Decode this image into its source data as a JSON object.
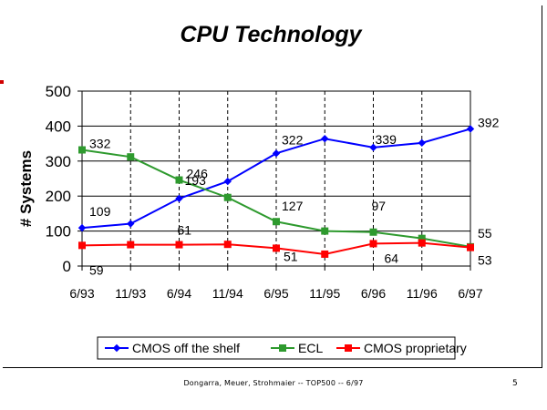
{
  "slide": {
    "footer": "Dongarra, Meuer, Strohmaier -- TOP500 -- 6/97",
    "page_number": "5"
  },
  "colors": {
    "frame": "#000000",
    "accent_mark": "#d00000"
  },
  "chart_data": {
    "type": "line",
    "title": "CPU Technology",
    "ylabel": "# Systems",
    "xlabel": "",
    "ylim": [
      0,
      500
    ],
    "yticks": [
      0,
      100,
      200,
      300,
      400,
      500
    ],
    "x": [
      "6/93",
      "11/93",
      "6/94",
      "11/94",
      "6/95",
      "11/95",
      "6/96",
      "11/96",
      "6/97"
    ],
    "grid": "vertical dashed and horizontal solid",
    "legend_position": "bottom",
    "series": [
      {
        "name": "CMOS off the shelf",
        "color": "#0000ff",
        "marker": "diamond",
        "values": [
          109,
          121,
          193,
          242,
          322,
          364,
          339,
          352,
          392
        ]
      },
      {
        "name": "ECL",
        "color": "#2e9a2e",
        "marker": "square",
        "values": [
          332,
          312,
          246,
          196,
          127,
          100,
          97,
          79,
          55
        ]
      },
      {
        "name": "CMOS proprietary",
        "color": "#ff0000",
        "marker": "square",
        "values": [
          59,
          61,
          61,
          62,
          51,
          34,
          64,
          66,
          53
        ]
      }
    ],
    "data_labels": [
      {
        "series": 0,
        "index": 0,
        "text": "109"
      },
      {
        "series": 0,
        "index": 2,
        "text": "193"
      },
      {
        "series": 0,
        "index": 4,
        "text": "322"
      },
      {
        "series": 0,
        "index": 6,
        "text": "339"
      },
      {
        "series": 0,
        "index": 8,
        "text": "392"
      },
      {
        "series": 1,
        "index": 0,
        "text": "332"
      },
      {
        "series": 1,
        "index": 2,
        "text": "246"
      },
      {
        "series": 1,
        "index": 4,
        "text": "127"
      },
      {
        "series": 1,
        "index": 6,
        "text": "97"
      },
      {
        "series": 1,
        "index": 8,
        "text": "55"
      },
      {
        "series": 2,
        "index": 0,
        "text": "59"
      },
      {
        "series": 2,
        "index": 2,
        "text": "61"
      },
      {
        "series": 2,
        "index": 4,
        "text": "51"
      },
      {
        "series": 2,
        "index": 6,
        "text": "64"
      },
      {
        "series": 2,
        "index": 8,
        "text": "53"
      }
    ]
  }
}
